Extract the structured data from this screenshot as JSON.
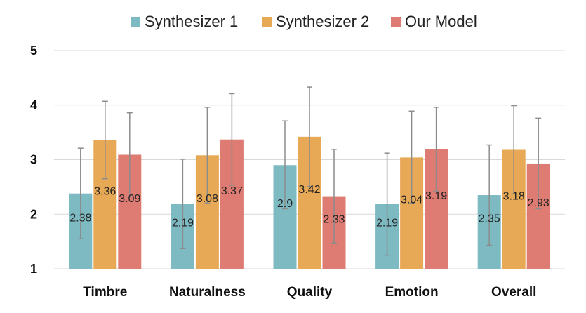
{
  "chart_data": {
    "type": "bar",
    "title": "",
    "xlabel": "",
    "ylabel": "",
    "ylim": [
      1,
      5
    ],
    "yticks": [
      "1",
      "2",
      "3",
      "4",
      "5"
    ],
    "grid": true,
    "legend_position": "top-center",
    "categories": [
      "Timbre",
      "Naturalness",
      "Quality",
      "Emotion",
      "Overall"
    ],
    "series": [
      {
        "name": "Synthesizer 1",
        "color": "#7dbac2",
        "values": [
          2.38,
          2.19,
          2.9,
          2.19,
          2.35
        ],
        "labels": [
          "2.38",
          "2.19",
          "2.9",
          "2.19",
          "2.35"
        ],
        "err_low": [
          1.55,
          1.37,
          2.1,
          1.25,
          1.43
        ],
        "err_high": [
          3.21,
          3.01,
          3.71,
          3.12,
          3.27
        ]
      },
      {
        "name": "Synthesizer 2",
        "color": "#e8a956",
        "values": [
          3.36,
          3.08,
          3.42,
          3.04,
          3.18
        ],
        "labels": [
          "3.36",
          "3.08",
          "3.42",
          "3.04",
          "3.18"
        ],
        "err_low": [
          2.65,
          2.2,
          2.51,
          2.2,
          2.37
        ],
        "err_high": [
          4.07,
          3.96,
          4.33,
          3.89,
          3.99
        ]
      },
      {
        "name": "Our Model",
        "color": "#de7b72",
        "values": [
          3.09,
          3.37,
          2.33,
          3.19,
          2.93
        ],
        "labels": [
          "3.09",
          "3.37",
          "2.33",
          "3.19",
          "2.93"
        ],
        "err_low": [
          2.32,
          2.53,
          1.47,
          2.42,
          2.1
        ],
        "err_high": [
          3.86,
          4.21,
          3.19,
          3.96,
          3.76
        ]
      }
    ]
  }
}
